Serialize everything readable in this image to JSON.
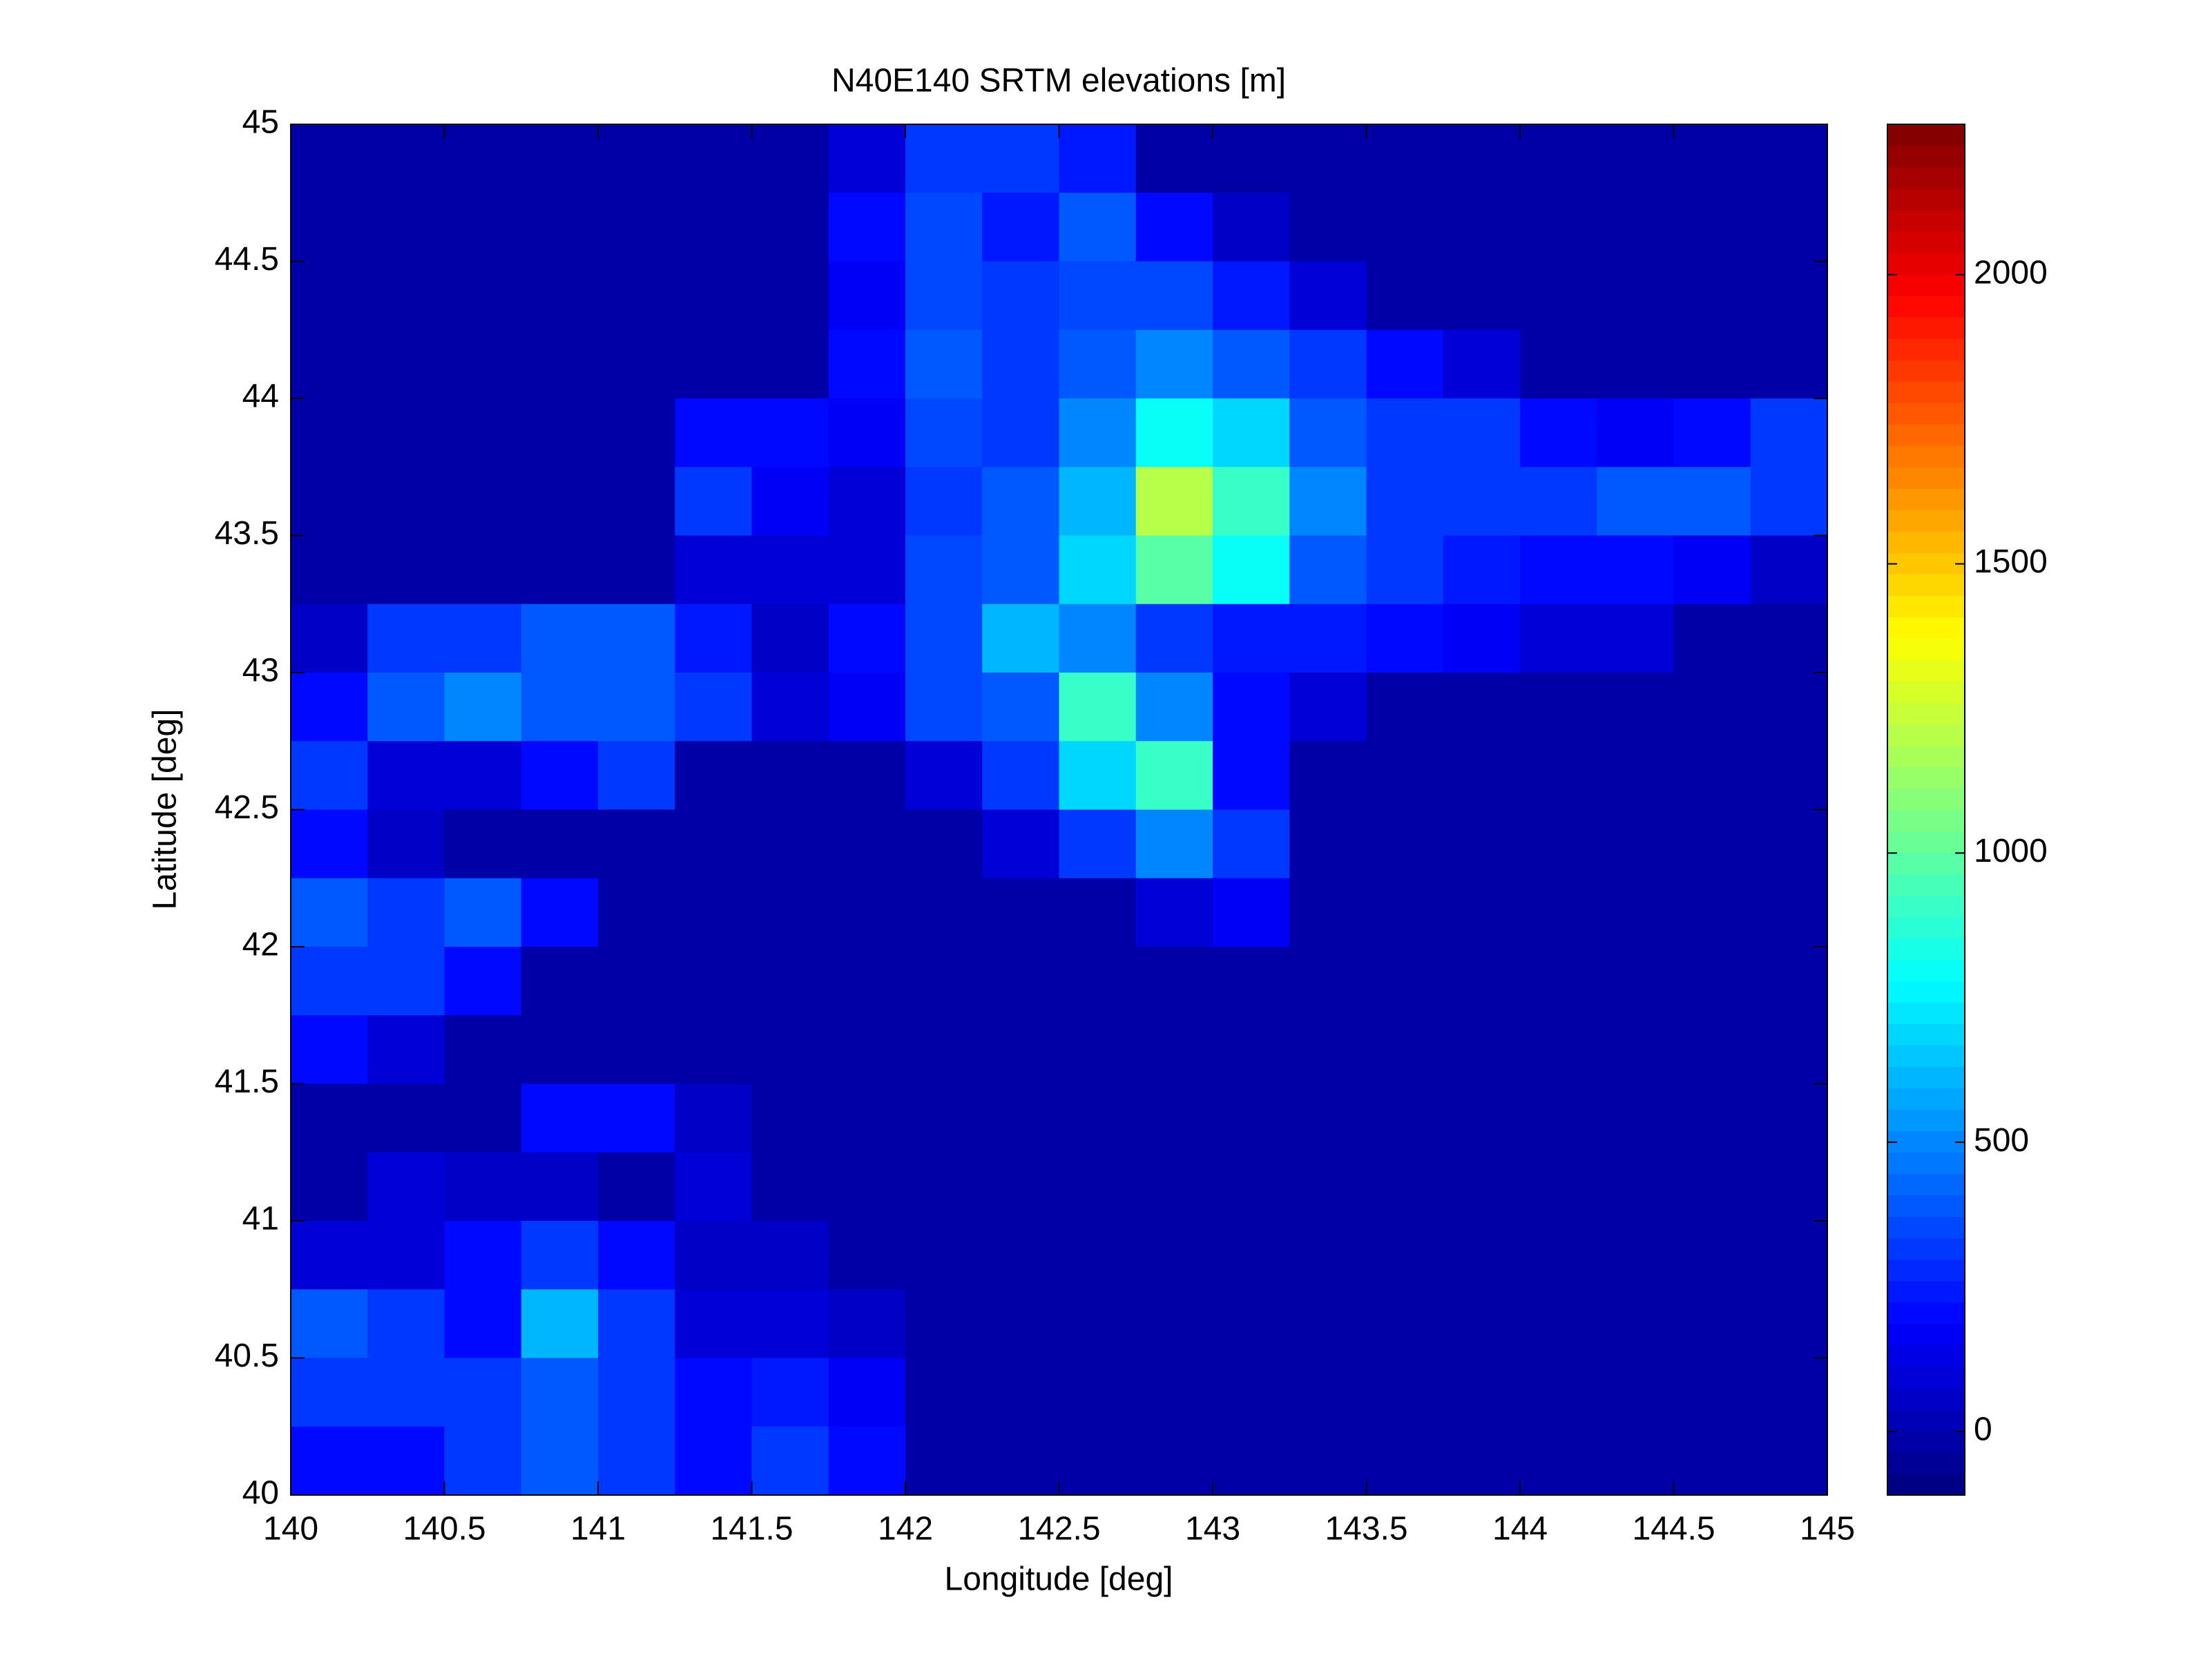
{
  "chart_data": {
    "type": "heatmap",
    "title": "N40E140 SRTM elevations [m]",
    "x_label": "Longitude [deg]",
    "y_label": "Latitude [deg]",
    "xlim": [
      140,
      145
    ],
    "ylim": [
      40,
      45
    ],
    "xticks": [
      140,
      140.5,
      141,
      141.5,
      142,
      142.5,
      143,
      143.5,
      144,
      144.5,
      145
    ],
    "yticks": [
      40,
      40.5,
      41,
      41.5,
      42,
      42.5,
      43,
      43.5,
      44,
      44.5,
      45
    ],
    "colormap": "jet",
    "clim": [
      -110,
      2260
    ],
    "colorbar_ticks": [
      0,
      500,
      1000,
      1500,
      2000
    ],
    "z": [
      [
        0,
        0,
        0,
        0,
        0,
        0,
        0,
        100,
        300,
        300,
        250,
        0,
        0,
        0,
        0,
        0,
        0,
        0,
        0,
        0
      ],
      [
        0,
        0,
        0,
        0,
        0,
        0,
        0,
        200,
        350,
        250,
        400,
        200,
        50,
        0,
        0,
        0,
        0,
        0,
        0,
        0
      ],
      [
        0,
        0,
        0,
        0,
        0,
        0,
        0,
        150,
        350,
        300,
        350,
        350,
        250,
        100,
        0,
        0,
        0,
        0,
        0,
        0
      ],
      [
        0,
        0,
        0,
        0,
        0,
        0,
        0,
        200,
        400,
        300,
        400,
        500,
        400,
        300,
        200,
        100,
        0,
        0,
        0,
        0
      ],
      [
        0,
        0,
        0,
        0,
        0,
        200,
        200,
        150,
        350,
        300,
        500,
        800,
        700,
        400,
        300,
        300,
        200,
        150,
        200,
        300
      ],
      [
        0,
        0,
        0,
        0,
        0,
        300,
        150,
        100,
        300,
        400,
        600,
        1200,
        900,
        500,
        300,
        300,
        300,
        400,
        400,
        300
      ],
      [
        0,
        0,
        0,
        0,
        0,
        100,
        100,
        100,
        350,
        400,
        700,
        1000,
        800,
        400,
        300,
        250,
        200,
        200,
        150,
        50
      ],
      [
        50,
        300,
        300,
        400,
        400,
        250,
        50,
        200,
        350,
        600,
        500,
        300,
        250,
        250,
        200,
        150,
        100,
        100,
        0,
        0
      ],
      [
        200,
        400,
        500,
        400,
        400,
        300,
        100,
        150,
        350,
        400,
        900,
        500,
        200,
        100,
        0,
        0,
        0,
        0,
        0,
        0
      ],
      [
        300,
        100,
        100,
        200,
        300,
        0,
        0,
        0,
        100,
        300,
        700,
        900,
        200,
        0,
        0,
        0,
        0,
        0,
        0,
        0
      ],
      [
        200,
        50,
        0,
        0,
        0,
        0,
        0,
        0,
        0,
        100,
        300,
        500,
        300,
        0,
        0,
        0,
        0,
        0,
        0,
        0
      ],
      [
        400,
        300,
        400,
        200,
        0,
        0,
        0,
        0,
        0,
        0,
        0,
        100,
        150,
        0,
        0,
        0,
        0,
        0,
        0,
        0
      ],
      [
        300,
        300,
        200,
        0,
        0,
        0,
        0,
        0,
        0,
        0,
        0,
        0,
        0,
        0,
        0,
        0,
        0,
        0,
        0,
        0
      ],
      [
        200,
        100,
        0,
        0,
        0,
        0,
        0,
        0,
        0,
        0,
        0,
        0,
        0,
        0,
        0,
        0,
        0,
        0,
        0,
        0
      ],
      [
        0,
        0,
        0,
        200,
        200,
        50,
        0,
        0,
        0,
        0,
        0,
        0,
        0,
        0,
        0,
        0,
        0,
        0,
        0,
        0
      ],
      [
        0,
        100,
        50,
        50,
        0,
        100,
        0,
        0,
        0,
        0,
        0,
        0,
        0,
        0,
        0,
        0,
        0,
        0,
        0,
        0
      ],
      [
        100,
        100,
        200,
        300,
        200,
        50,
        50,
        0,
        0,
        0,
        0,
        0,
        0,
        0,
        0,
        0,
        0,
        0,
        0,
        0
      ],
      [
        400,
        300,
        200,
        600,
        300,
        100,
        100,
        50,
        0,
        0,
        0,
        0,
        0,
        0,
        0,
        0,
        0,
        0,
        0,
        0
      ],
      [
        300,
        300,
        300,
        400,
        300,
        200,
        250,
        150,
        0,
        0,
        0,
        0,
        0,
        0,
        0,
        0,
        0,
        0,
        0,
        0
      ],
      [
        200,
        200,
        300,
        400,
        300,
        200,
        300,
        200,
        0,
        0,
        0,
        0,
        0,
        0,
        0,
        0,
        0,
        0,
        0,
        0
      ]
    ]
  }
}
